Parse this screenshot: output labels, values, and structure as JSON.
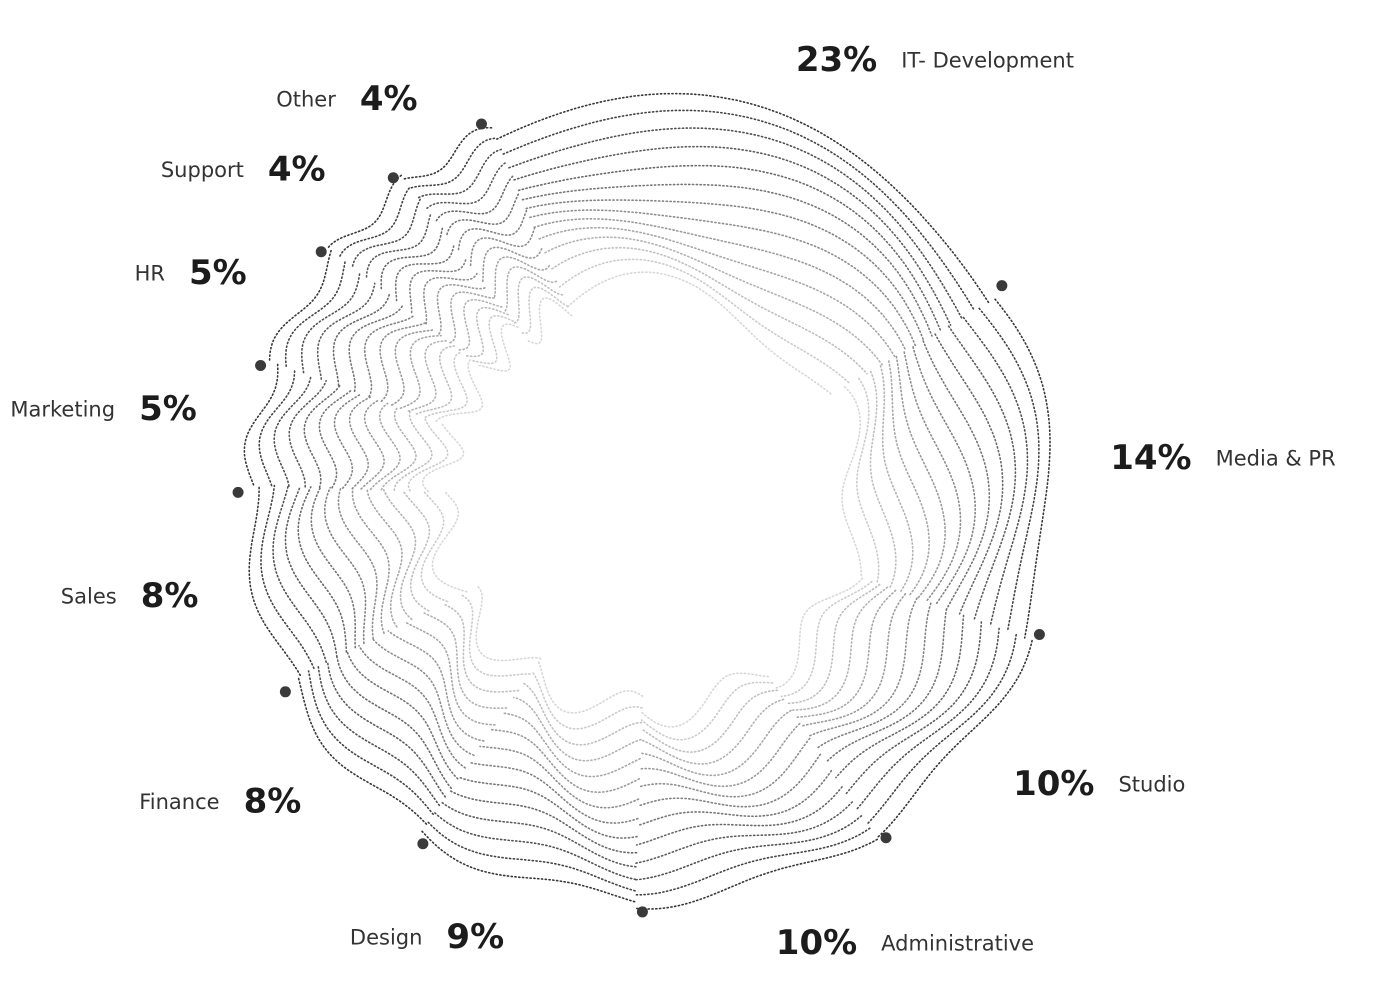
{
  "chart_data": {
    "type": "radial",
    "categories": [
      "IT- Development",
      "Media & PR",
      "Studio",
      "Administrative",
      "Design",
      "Finance",
      "Sales",
      "Marketing",
      "HR",
      "Support",
      "Other"
    ],
    "values": [
      23,
      14,
      10,
      10,
      9,
      8,
      8,
      5,
      5,
      4,
      4
    ],
    "value_labels": [
      "23%",
      "14%",
      "10%",
      "10%",
      "9%",
      "8%",
      "8%",
      "5%",
      "5%",
      "4%",
      "4%"
    ],
    "color": "#3a3a3a"
  }
}
